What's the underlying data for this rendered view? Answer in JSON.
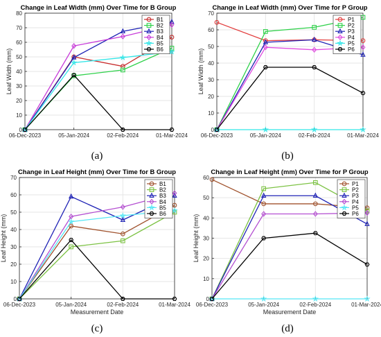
{
  "colors": {
    "s1": "#A0522D",
    "s2": "#7CC243",
    "s3": "#1E22B5",
    "s4": "#B44FD1",
    "s5": "#55E7F5",
    "s6": "#000000",
    "p1": "#E23B3B",
    "p2": "#2ED14A",
    "p3": "#1E22B5",
    "p4": "#E04CE0",
    "p5": "#33E6E8",
    "p6": "#000000"
  },
  "chart_data": [
    {
      "caption": "(a)",
      "type": "line",
      "title": "Change in Leaf Width (mm) Over Time for B Group",
      "xlabel": "",
      "ylabel": "Leaf Width (mm)",
      "categories": [
        "06-Dec-2023",
        "05-Jan-2024",
        "02-Feb-2024",
        "01-Mar-2024"
      ],
      "ylim": [
        0,
        80
      ],
      "yticks": [
        0,
        10,
        20,
        30,
        40,
        50,
        60,
        70,
        80
      ],
      "grid": true,
      "legend_position": "top-right",
      "series": [
        {
          "name": "B1",
          "marker": "circle",
          "color": "#C72C2C",
          "values": [
            0,
            50,
            43.5,
            63.5
          ]
        },
        {
          "name": "B2",
          "marker": "square",
          "color": "#2ED14A",
          "values": [
            0,
            37,
            41,
            56
          ]
        },
        {
          "name": "B3",
          "marker": "triangle",
          "color": "#1E22B5",
          "values": [
            0,
            49.5,
            67.5,
            74
          ]
        },
        {
          "name": "B4",
          "marker": "diamond",
          "color": "#C83CD9",
          "values": [
            0,
            57.5,
            64,
            72
          ]
        },
        {
          "name": "B5",
          "marker": "star",
          "color": "#33E6E8",
          "values": [
            0,
            46,
            49.5,
            53.5
          ]
        },
        {
          "name": "B6",
          "marker": "hexagon",
          "color": "#000000",
          "values": [
            0,
            37.5,
            0,
            0
          ]
        }
      ]
    },
    {
      "caption": "(b)",
      "type": "line",
      "title": "Change in Leaf Width (mm) Over Time for P Group",
      "xlabel": "",
      "ylabel": "Leaf Width (mm)",
      "categories": [
        "06-Dec-2023",
        "05-Jan-2024",
        "02-Feb-2024",
        "01-Mar-2024"
      ],
      "ylim": [
        0,
        70
      ],
      "yticks": [
        0,
        10,
        20,
        30,
        40,
        50,
        60,
        70
      ],
      "grid": true,
      "legend_position": "top-right",
      "series": [
        {
          "name": "P1",
          "marker": "circle",
          "color": "#E23B3B",
          "values": [
            64.5,
            53.5,
            54,
            53.5
          ]
        },
        {
          "name": "P2",
          "marker": "square",
          "color": "#2ED14A",
          "values": [
            0,
            59,
            61.5,
            67.5
          ]
        },
        {
          "name": "P3",
          "marker": "triangle",
          "color": "#1E22B5",
          "values": [
            0,
            52.5,
            54,
            45
          ]
        },
        {
          "name": "P4",
          "marker": "diamond",
          "color": "#E04CE0",
          "values": [
            0,
            49.5,
            48,
            49.5
          ]
        },
        {
          "name": "P5",
          "marker": "star",
          "color": "#33E6E8",
          "values": [
            0,
            0,
            0,
            0
          ]
        },
        {
          "name": "P6",
          "marker": "hexagon",
          "color": "#000000",
          "values": [
            0,
            37.5,
            37.5,
            22
          ]
        }
      ]
    },
    {
      "caption": "(c)",
      "type": "line",
      "title": "Change in Leaf Height (mm) Over Time for B Group",
      "xlabel": "Measurement Date",
      "ylabel": "Leaf Height (mm)",
      "categories": [
        "06-Dec-2023",
        "05-Jan-2024",
        "02-Feb-2024",
        "01-Mar-2024"
      ],
      "ylim": [
        0,
        70
      ],
      "yticks": [
        0,
        10,
        20,
        30,
        40,
        50,
        60,
        70
      ],
      "grid": true,
      "legend_position": "top-right",
      "series": [
        {
          "name": "B1",
          "marker": "circle",
          "color": "#A0522D",
          "values": [
            0,
            42,
            37.5,
            54
          ]
        },
        {
          "name": "B2",
          "marker": "square",
          "color": "#7CC243",
          "values": [
            0,
            30,
            33.5,
            50
          ]
        },
        {
          "name": "B3",
          "marker": "triangle",
          "color": "#1E22B5",
          "values": [
            0,
            59,
            45.5,
            59.5
          ]
        },
        {
          "name": "B4",
          "marker": "diamond",
          "color": "#B44FD1",
          "values": [
            0,
            47.5,
            53,
            61
          ]
        },
        {
          "name": "B5",
          "marker": "star",
          "color": "#55E7F5",
          "values": [
            0,
            44.5,
            48,
            51
          ]
        },
        {
          "name": "B6",
          "marker": "hexagon",
          "color": "#000000",
          "values": [
            0,
            34,
            0,
            0
          ]
        }
      ]
    },
    {
      "caption": "(d)",
      "type": "line",
      "title": "Change in Leaf Height (mm) Over Time for P Group",
      "xlabel": "Measurement Date",
      "ylabel": "Leaf Height (mm)",
      "categories": [
        "06-Dec-2023",
        "05-Jan-2024",
        "02-Feb-2024",
        "01-Mar-2024"
      ],
      "ylim": [
        0,
        60
      ],
      "yticks": [
        0,
        10,
        20,
        30,
        40,
        50,
        60
      ],
      "grid": true,
      "legend_position": "top-right",
      "series": [
        {
          "name": "P1",
          "marker": "circle",
          "color": "#A0522D",
          "values": [
            59,
            47,
            47,
            45
          ]
        },
        {
          "name": "P2",
          "marker": "square",
          "color": "#7CC243",
          "values": [
            0,
            54.5,
            57.5,
            43.5
          ]
        },
        {
          "name": "P3",
          "marker": "triangle",
          "color": "#1E22B5",
          "values": [
            0,
            51,
            51,
            37
          ]
        },
        {
          "name": "P4",
          "marker": "diamond",
          "color": "#B44FD1",
          "values": [
            0,
            42,
            42,
            42.5
          ]
        },
        {
          "name": "P5",
          "marker": "star",
          "color": "#55E7F5",
          "values": [
            0,
            0,
            0,
            0
          ]
        },
        {
          "name": "P6",
          "marker": "hexagon",
          "color": "#000000",
          "values": [
            0,
            30,
            32.5,
            17
          ]
        }
      ]
    }
  ]
}
